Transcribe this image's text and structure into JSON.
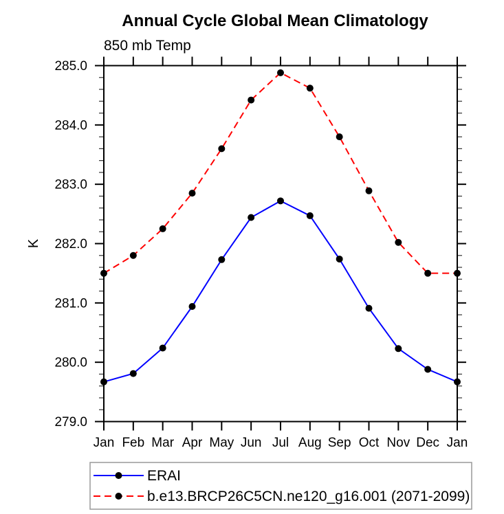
{
  "title": "Annual Cycle Global Mean Climatology",
  "subtitle": "850 mb Temp",
  "y_axis_label": "K",
  "chart_data": {
    "type": "line",
    "title": "Annual Cycle Global Mean Climatology",
    "subtitle": "850 mb Temp",
    "ylabel": "K",
    "xlabel": "",
    "x_categories": [
      "Jan",
      "Feb",
      "Mar",
      "Apr",
      "May",
      "Jun",
      "Jul",
      "Aug",
      "Sep",
      "Oct",
      "Nov",
      "Dec",
      "Jan"
    ],
    "ylim": [
      279.0,
      285.0
    ],
    "y_major_tick_step": 1.0,
    "y_minor_tick_step": 0.2,
    "y_tick_labels": [
      "279.0",
      "280.0",
      "281.0",
      "282.0",
      "283.0",
      "284.0",
      "285.0"
    ],
    "grid": false,
    "legend_position": "bottom-left-box",
    "series": [
      {
        "name": "ERAI",
        "color": "#0000ff",
        "line_style": "solid",
        "marker": "filled-circle",
        "marker_color": "#000000",
        "values": [
          279.67,
          279.81,
          280.24,
          280.94,
          281.73,
          282.44,
          282.72,
          282.47,
          281.74,
          280.91,
          280.23,
          279.88,
          279.67
        ]
      },
      {
        "name": "b.e13.BRCP26C5CN.ne120_g16.001 (2071-2099)",
        "color": "#ff0000",
        "line_style": "dashed",
        "marker": "filled-circle",
        "marker_color": "#000000",
        "values": [
          281.5,
          281.8,
          282.25,
          282.85,
          283.6,
          284.42,
          284.88,
          284.62,
          283.8,
          282.89,
          282.02,
          281.5,
          281.5
        ]
      }
    ]
  },
  "legend": {
    "items": [
      {
        "label": "ERAI"
      },
      {
        "label": "b.e13.BRCP26C5CN.ne120_g16.001 (2071-2099)"
      }
    ]
  },
  "colors": {
    "axis": "#000000",
    "minor_tick": "#333333",
    "erai_line": "#0000ff",
    "model_line": "#ff0000",
    "marker": "#000000",
    "legend_border": "#999999",
    "background": "#ffffff"
  }
}
